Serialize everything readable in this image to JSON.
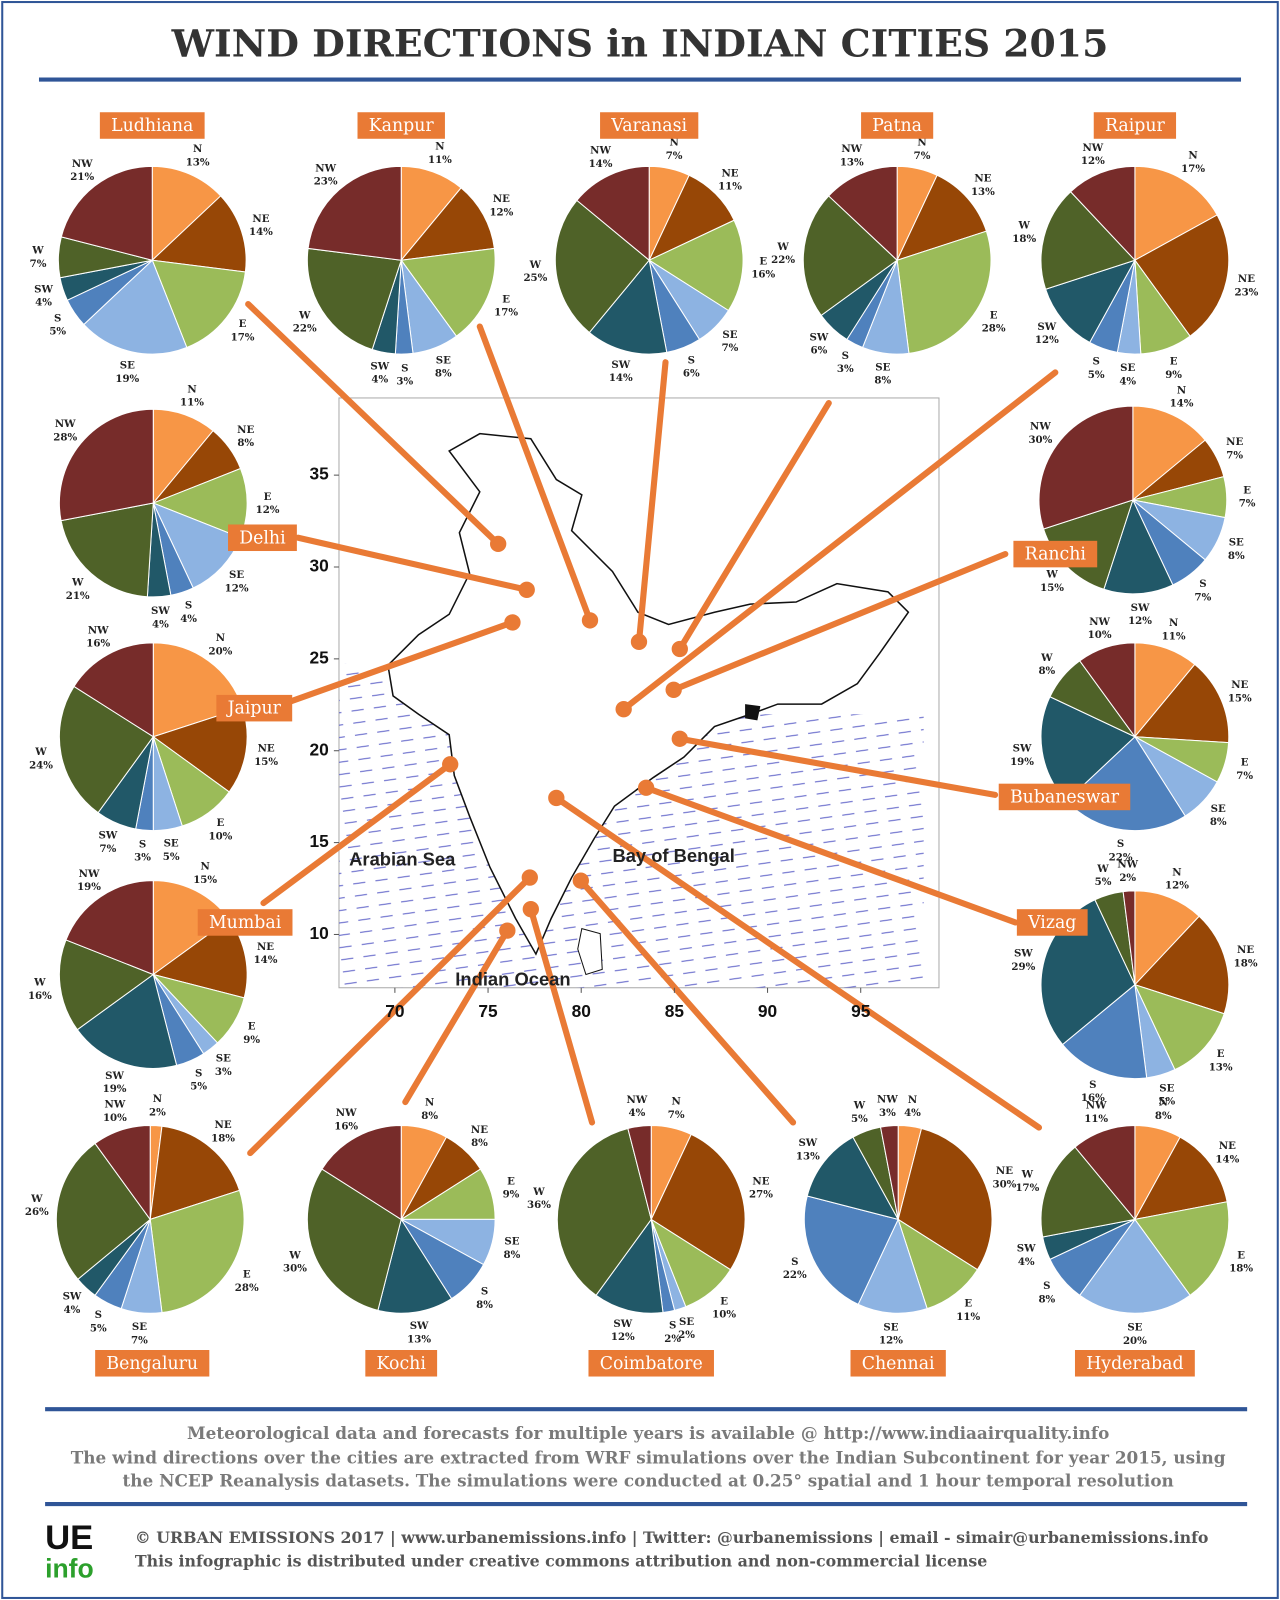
{
  "header": {
    "title": "WIND DIRECTIONS in INDIAN CITIES 2015"
  },
  "chart_data": [
    {
      "type": "pie",
      "title": "Ludhiana",
      "categories": [
        "N",
        "NE",
        "E",
        "SE",
        "S",
        "SW",
        "W",
        "NW"
      ],
      "values": [
        13,
        14,
        17,
        19,
        5,
        4,
        7,
        21
      ],
      "value_labels": [
        "13%",
        "14%",
        "17%",
        "19%",
        "5%",
        "4%",
        "7%",
        "21%"
      ],
      "colors": [
        "#f79646",
        "#974706",
        "#9bbb59",
        "#8db3e2",
        "#4f81bd",
        "#215868",
        "#4f6228",
        "#772c2a"
      ]
    },
    {
      "type": "pie",
      "title": "Kanpur",
      "categories": [
        "N",
        "NE",
        "E",
        "SE",
        "S",
        "SW",
        "W",
        "NW"
      ],
      "values": [
        11,
        12,
        17,
        8,
        3,
        4,
        22,
        23
      ],
      "value_labels": [
        "11%",
        "12%",
        "17%",
        "8%",
        "3%",
        "4%",
        "22%",
        "23%"
      ],
      "colors": [
        "#f79646",
        "#974706",
        "#9bbb59",
        "#8db3e2",
        "#4f81bd",
        "#215868",
        "#4f6228",
        "#772c2a"
      ]
    },
    {
      "type": "pie",
      "title": "Varanasi",
      "categories": [
        "N",
        "NE",
        "E",
        "SE",
        "S",
        "SW",
        "W",
        "NW"
      ],
      "values": [
        7,
        11,
        16,
        7,
        6,
        14,
        25,
        14
      ],
      "value_labels": [
        "7%",
        "11%",
        "16%",
        "7%",
        "6%",
        "14%",
        "25%",
        "14%"
      ],
      "colors": [
        "#f79646",
        "#974706",
        "#9bbb59",
        "#8db3e2",
        "#4f81bd",
        "#215868",
        "#4f6228",
        "#772c2a"
      ]
    },
    {
      "type": "pie",
      "title": "Patna",
      "categories": [
        "N",
        "NE",
        "E",
        "SE",
        "S",
        "SW",
        "W",
        "NW"
      ],
      "values": [
        7,
        13,
        28,
        8,
        3,
        6,
        22,
        13
      ],
      "value_labels": [
        "7%",
        "13%",
        "28%",
        "8%",
        "3%",
        "6%",
        "22%",
        "13%"
      ],
      "colors": [
        "#f79646",
        "#974706",
        "#9bbb59",
        "#8db3e2",
        "#4f81bd",
        "#215868",
        "#4f6228",
        "#772c2a"
      ]
    },
    {
      "type": "pie",
      "title": "Raipur",
      "categories": [
        "N",
        "NE",
        "E",
        "SE",
        "S",
        "SW",
        "W",
        "NW"
      ],
      "values": [
        17,
        23,
        9,
        4,
        5,
        12,
        18,
        12
      ],
      "value_labels": [
        "17%",
        "23%",
        "9%",
        "4%",
        "5%",
        "12%",
        "18%",
        "12%"
      ],
      "colors": [
        "#f79646",
        "#974706",
        "#9bbb59",
        "#8db3e2",
        "#4f81bd",
        "#215868",
        "#4f6228",
        "#772c2a"
      ]
    },
    {
      "type": "pie",
      "title": "Delhi",
      "categories": [
        "N",
        "NE",
        "E",
        "SE",
        "S",
        "SW",
        "W",
        "NW"
      ],
      "values": [
        11,
        8,
        12,
        12,
        4,
        4,
        21,
        28
      ],
      "value_labels": [
        "11%",
        "8%",
        "12%",
        "12%",
        "4%",
        "4%",
        "21%",
        "28%"
      ],
      "colors": [
        "#f79646",
        "#974706",
        "#9bbb59",
        "#8db3e2",
        "#4f81bd",
        "#215868",
        "#4f6228",
        "#772c2a"
      ]
    },
    {
      "type": "pie",
      "title": "Ranchi",
      "categories": [
        "N",
        "NE",
        "E",
        "SE",
        "S",
        "SW",
        "W",
        "NW"
      ],
      "values": [
        14,
        7,
        7,
        8,
        7,
        12,
        15,
        30
      ],
      "value_labels": [
        "14%",
        "7%",
        "7%",
        "8%",
        "7%",
        "12%",
        "15%",
        "30%"
      ],
      "colors": [
        "#f79646",
        "#974706",
        "#9bbb59",
        "#8db3e2",
        "#4f81bd",
        "#215868",
        "#4f6228",
        "#772c2a"
      ]
    },
    {
      "type": "pie",
      "title": "Jaipur",
      "categories": [
        "N",
        "NE",
        "E",
        "SE",
        "S",
        "SW",
        "W",
        "NW"
      ],
      "values": [
        20,
        15,
        10,
        5,
        3,
        7,
        24,
        16
      ],
      "value_labels": [
        "20%",
        "15%",
        "10%",
        "5%",
        "3%",
        "7%",
        "24%",
        "16%"
      ],
      "colors": [
        "#f79646",
        "#974706",
        "#9bbb59",
        "#8db3e2",
        "#4f81bd",
        "#215868",
        "#4f6228",
        "#772c2a"
      ]
    },
    {
      "type": "pie",
      "title": "Bubaneswar",
      "categories": [
        "N",
        "NE",
        "E",
        "SE",
        "S",
        "SW",
        "W",
        "NW"
      ],
      "values": [
        11,
        15,
        7,
        8,
        22,
        19,
        8,
        10
      ],
      "value_labels": [
        "11%",
        "15%",
        "7%",
        "8%",
        "22%",
        "19%",
        "8%",
        "10%"
      ],
      "colors": [
        "#f79646",
        "#974706",
        "#9bbb59",
        "#8db3e2",
        "#4f81bd",
        "#215868",
        "#4f6228",
        "#772c2a"
      ]
    },
    {
      "type": "pie",
      "title": "Mumbai",
      "categories": [
        "N",
        "NE",
        "E",
        "SE",
        "S",
        "SW",
        "W",
        "NW"
      ],
      "values": [
        15,
        14,
        9,
        3,
        5,
        19,
        16,
        19
      ],
      "value_labels": [
        "15%",
        "14%",
        "9%",
        "3%",
        "5%",
        "19%",
        "16%",
        "19%"
      ],
      "colors": [
        "#f79646",
        "#974706",
        "#9bbb59",
        "#8db3e2",
        "#4f81bd",
        "#215868",
        "#4f6228",
        "#772c2a"
      ]
    },
    {
      "type": "pie",
      "title": "Vizag",
      "categories": [
        "N",
        "NE",
        "E",
        "SE",
        "S",
        "SW",
        "W",
        "NW"
      ],
      "values": [
        12,
        18,
        13,
        5,
        16,
        29,
        5,
        2
      ],
      "value_labels": [
        "12%",
        "18%",
        "13%",
        "5%",
        "16%",
        "29%",
        "5%",
        "2%"
      ],
      "colors": [
        "#f79646",
        "#974706",
        "#9bbb59",
        "#8db3e2",
        "#4f81bd",
        "#215868",
        "#4f6228",
        "#772c2a"
      ]
    },
    {
      "type": "pie",
      "title": "Bengaluru",
      "categories": [
        "N",
        "NE",
        "E",
        "SE",
        "S",
        "SW",
        "W",
        "NW"
      ],
      "values": [
        2,
        18,
        28,
        7,
        5,
        4,
        26,
        10
      ],
      "value_labels": [
        "2%",
        "18%",
        "28%",
        "7%",
        "5%",
        "4%",
        "26%",
        "10%"
      ],
      "colors": [
        "#f79646",
        "#974706",
        "#9bbb59",
        "#8db3e2",
        "#4f81bd",
        "#215868",
        "#4f6228",
        "#772c2a"
      ]
    },
    {
      "type": "pie",
      "title": "Kochi",
      "categories": [
        "N",
        "NE",
        "E",
        "SE",
        "S",
        "SW",
        "W",
        "NW"
      ],
      "values": [
        8,
        8,
        9,
        8,
        8,
        13,
        30,
        16
      ],
      "value_labels": [
        "8%",
        "8%",
        "9%",
        "8%",
        "8%",
        "13%",
        "30%",
        "16%"
      ],
      "colors": [
        "#f79646",
        "#974706",
        "#9bbb59",
        "#8db3e2",
        "#4f81bd",
        "#215868",
        "#4f6228",
        "#772c2a"
      ]
    },
    {
      "type": "pie",
      "title": "Coimbatore",
      "categories": [
        "N",
        "NE",
        "E",
        "SE",
        "S",
        "SW",
        "W",
        "NW"
      ],
      "values": [
        7,
        27,
        10,
        2,
        2,
        12,
        36,
        4
      ],
      "value_labels": [
        "7%",
        "27%",
        "10%",
        "2%",
        "2%",
        "12%",
        "36%",
        "4%"
      ],
      "colors": [
        "#f79646",
        "#974706",
        "#9bbb59",
        "#8db3e2",
        "#4f81bd",
        "#215868",
        "#4f6228",
        "#772c2a"
      ]
    },
    {
      "type": "pie",
      "title": "Chennai",
      "categories": [
        "N",
        "NE",
        "E",
        "SE",
        "S",
        "SW",
        "W",
        "NW"
      ],
      "values": [
        4,
        30,
        11,
        12,
        22,
        13,
        5,
        3
      ],
      "value_labels": [
        "4%",
        "30%",
        "11%",
        "12%",
        "22%",
        "13%",
        "5%",
        "3%"
      ],
      "colors": [
        "#f79646",
        "#974706",
        "#9bbb59",
        "#8db3e2",
        "#4f81bd",
        "#215868",
        "#4f6228",
        "#772c2a"
      ]
    },
    {
      "type": "pie",
      "title": "Hyderabad",
      "categories": [
        "N",
        "NE",
        "E",
        "SE",
        "S",
        "SW",
        "W",
        "NW"
      ],
      "values": [
        8,
        14,
        18,
        20,
        8,
        4,
        17,
        11
      ],
      "value_labels": [
        "8%",
        "14%",
        "18%",
        "20%",
        "8%",
        "4%",
        "17%",
        "11%"
      ],
      "colors": [
        "#f79646",
        "#974706",
        "#9bbb59",
        "#8db3e2",
        "#4f81bd",
        "#215868",
        "#4f6228",
        "#772c2a"
      ]
    },
    {
      "type": "map",
      "xlim": [
        67,
        99.2
      ],
      "ylim": [
        7.1,
        39.2
      ],
      "xticks": [
        70,
        75,
        80,
        85,
        90,
        95
      ],
      "yticks": [
        10,
        15,
        20,
        25,
        30,
        35
      ],
      "annotations": [
        "Arabian Sea",
        "Bay of Bengal",
        "Indian Ocean"
      ]
    }
  ],
  "footer": {
    "notes": [
      "Meteorological data and forecasts for multiple years is available @ http://www.indiaairquality.info",
      "The wind directions over the cities are extracted from WRF simulations over the Indian Subcontinent for year 2015, using",
      "the NCEP Reanalysis datasets. The simulations were conducted at 0.25° spatial and 1 hour temporal resolution"
    ],
    "credits": [
      "© URBAN EMISSIONS 2017 | www.urbanemissions.info | Twitter: @urbanemissions | email - simair@urbanemissions.info",
      "This infographic is distributed under creative commons attribution and non-commercial license"
    ],
    "logo": {
      "top": "UE",
      "bottom": "info"
    }
  }
}
